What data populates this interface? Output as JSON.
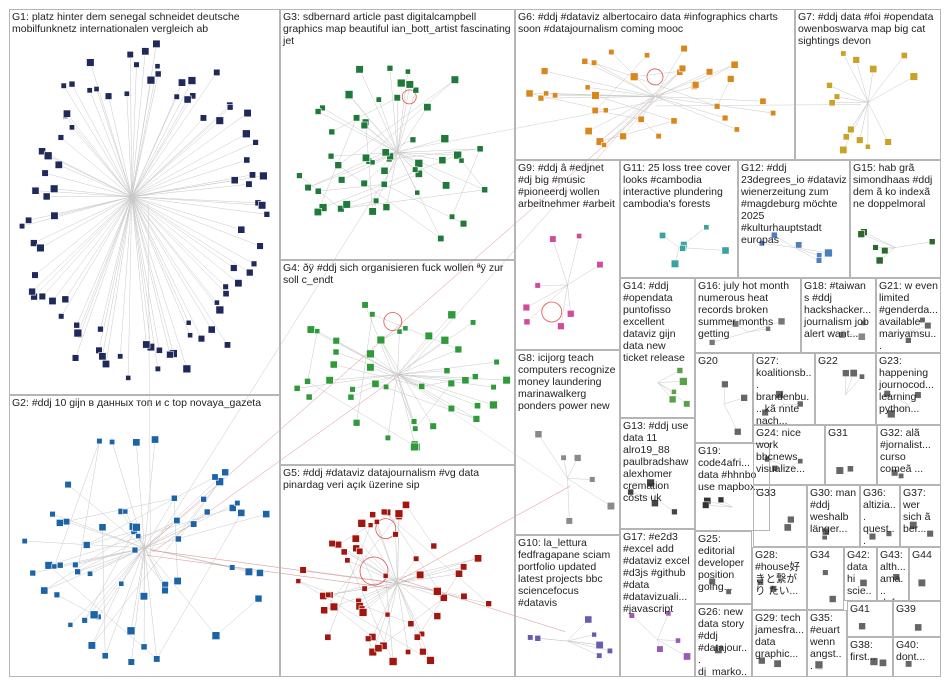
{
  "groups": [
    {
      "id": "G1",
      "label": "G1: platz hinter dem senegal schneidet deutsche mobilfunknetz internationalen vergleich ab",
      "color": "#1f2a5a"
    },
    {
      "id": "G2",
      "label": "G2: #ddj 10 gijn в данных топ и с top novaya_gazeta",
      "color": "#1d63a8"
    },
    {
      "id": "G3",
      "label": "G3: sdbernard article past digitalcampbell graphics map beautiful ian_bott_artist fascinating jet",
      "color": "#1f7a3a"
    },
    {
      "id": "G4",
      "label": "G4: ðÿ #ddj sich organisieren fuck wollen ªÿ zur soll c_endt",
      "color": "#2e9a3a"
    },
    {
      "id": "G5",
      "label": "G5: #ddj #dataviz datajournalism #vg data pinardag veri açık üzerine sip",
      "color": "#a3160f"
    },
    {
      "id": "G6",
      "label": "G6: #ddj #dataviz albertocairo data #infographics charts soon #datajournalism coming mooc",
      "color": "#d9861a"
    },
    {
      "id": "G7",
      "label": "G7: #ddj data #foi #opendata owenboswarva map big cat sightings devon",
      "color": "#c9a227"
    },
    {
      "id": "G8",
      "label": "G8: icijorg teach computers recognize money laundering marinawalkerg ponders power new",
      "color": "#8a8a8a"
    },
    {
      "id": "G9",
      "label": "G9: #ddj â #edjnet #dj big #music #pioneerdj wollen arbeitnehmer #arbeit",
      "color": "#d24b9a"
    },
    {
      "id": "G10",
      "label": "G10: la_lettura fedfragapane sciam portfolio updated latest projects bbc sciencefocus #datavis",
      "color": "#6b5bb0"
    },
    {
      "id": "G11",
      "label": "G11: 25 loss tree cover looks #cambodia interactive plundering cambodia's forests",
      "color": "#3aa3a0"
    },
    {
      "id": "G12",
      "label": "G12: #ddj 23degrees_io #dataviz wienerzeitung zum #magdeburg möchte 2025 #kulturhauptstadt europas",
      "color": "#4b7fc0"
    },
    {
      "id": "G13",
      "label": "G13: #ddj use data 11 alro19_88 paulbradshaw alexhomer cremation costs uk",
      "color": "#444444"
    },
    {
      "id": "G14",
      "label": "G14: #ddj #opendata puntofisso excellent dataviz gijn data new ticket release",
      "color": "#5aa04a"
    },
    {
      "id": "G15",
      "label": "G15: hab grã simondhaas #ddj dem ã ko indexã ne doppelmoral",
      "color": "#2a6a2a"
    },
    {
      "id": "G16",
      "label": "G16: july hot month numerous heat records broken summer months getting",
      "color": "#777777"
    },
    {
      "id": "G17",
      "label": "G17: #e2d3 #excel add #dataviz excel #d3js #github #data #datavizuali... #javascript",
      "color": "#9b59b6"
    },
    {
      "id": "G18",
      "label": "G18: #taiwan s #ddj hackshacker... journalism job alert want...",
      "color": "#888888"
    },
    {
      "id": "G19",
      "label": "G19: code4afri... data #hhnbo use mapbox...",
      "color": "#333333"
    },
    {
      "id": "G20",
      "label": "G20",
      "color": "#666666"
    },
    {
      "id": "G21",
      "label": "G21: w even limited #genderda... available mariyamsu...",
      "color": "#666666"
    },
    {
      "id": "G22",
      "label": "G22",
      "color": "#666666"
    },
    {
      "id": "G23",
      "label": "G23: happening journocod... learning python...",
      "color": "#666666"
    },
    {
      "id": "G24",
      "label": "G24: nice work bbcnews visualize...",
      "color": "#666666"
    },
    {
      "id": "G25",
      "label": "G25: editorial developer position going...",
      "color": "#666666"
    },
    {
      "id": "G26",
      "label": "G26: new data story #ddj #datajour... dj_marko...",
      "color": "#666666"
    },
    {
      "id": "G27",
      "label": "G27: koalitionsb... brandenbu... kã nnte nach...",
      "color": "#666666"
    },
    {
      "id": "G28",
      "label": "G28: #house好 きと繋がり たい...",
      "color": "#666666"
    },
    {
      "id": "G29",
      "label": "G29: tech jamesfra... data graphic...",
      "color": "#666666"
    },
    {
      "id": "G30",
      "label": "G30: man #ddj weshalb länger...",
      "color": "#666666"
    },
    {
      "id": "G31",
      "label": "G31",
      "color": "#666666"
    },
    {
      "id": "G32",
      "label": "G32: alã #jornalist... curso comeã ...",
      "color": "#666666"
    },
    {
      "id": "G33",
      "label": "G33",
      "color": "#666666"
    },
    {
      "id": "G34",
      "label": "G34",
      "color": "#666666"
    },
    {
      "id": "G35",
      "label": "G35: #euart wenn angst...",
      "color": "#666666"
    },
    {
      "id": "G36",
      "label": "G36: altizia... quest... trigge...",
      "color": "#666666"
    },
    {
      "id": "G37",
      "label": "G37: wer sich ã ber...",
      "color": "#666666"
    },
    {
      "id": "G38",
      "label": "G38: first...",
      "color": "#666666"
    },
    {
      "id": "G39",
      "label": "G39",
      "color": "#666666"
    },
    {
      "id": "G40",
      "label": "G40: dont...",
      "color": "#666666"
    },
    {
      "id": "G41",
      "label": "G41",
      "color": "#666666"
    },
    {
      "id": "G42",
      "label": "G42: data hi scie...",
      "color": "#666666"
    },
    {
      "id": "G43",
      "label": "G43: alth... ama... defo...",
      "color": "#666666"
    },
    {
      "id": "G44",
      "label": "G44",
      "color": "#666666"
    }
  ]
}
